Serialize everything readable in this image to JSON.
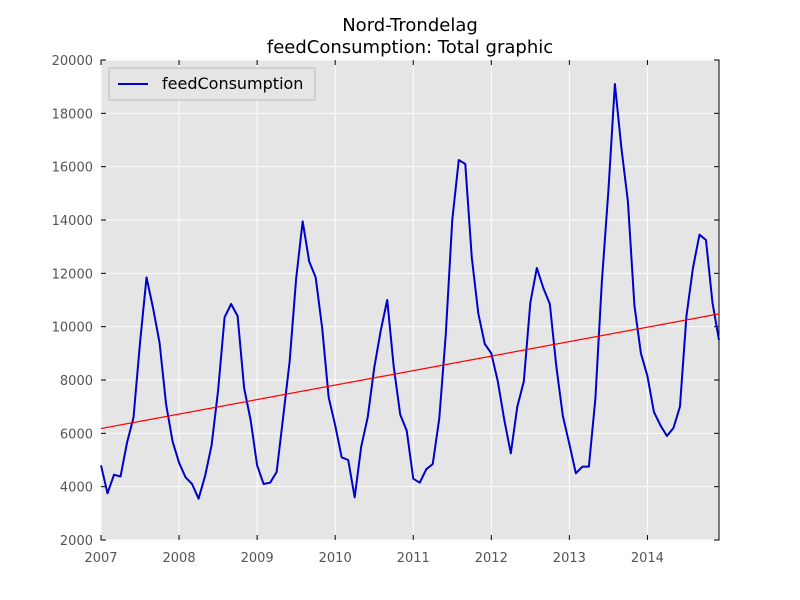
{
  "chart_data": {
    "type": "line",
    "title": "Nord-Trondelag",
    "subtitle": "feedConsumption: Total graphic",
    "xlabel": "",
    "ylabel": "",
    "xlim": [
      2007.0,
      2014.917
    ],
    "ylim": [
      2000,
      20000
    ],
    "x_ticks": [
      "2007",
      "2008",
      "2009",
      "2010",
      "2011",
      "2012",
      "2013",
      "2014"
    ],
    "y_ticks": [
      "2000",
      "4000",
      "6000",
      "8000",
      "10000",
      "12000",
      "14000",
      "16000",
      "18000",
      "20000"
    ],
    "grid": true,
    "legend": {
      "position": "top-left",
      "entries": [
        "feedConsumption"
      ]
    },
    "series": [
      {
        "name": "feedConsumption",
        "color": "#0000cc",
        "x_start": "2007-01",
        "frequency": "monthly",
        "values": [
          4800,
          3750,
          4450,
          4380,
          5650,
          6600,
          9400,
          11850,
          10700,
          9400,
          7100,
          5700,
          4900,
          4350,
          4100,
          3550,
          4400,
          5550,
          7600,
          10350,
          10850,
          10400,
          7700,
          6500,
          4800,
          4100,
          4150,
          4550,
          6600,
          8700,
          11800,
          13950,
          12450,
          11850,
          9950,
          7350,
          6300,
          5100,
          5000,
          3600,
          5500,
          6600,
          8450,
          9850,
          11000,
          8500,
          6700,
          6100,
          4300,
          4150,
          4650,
          4850,
          6550,
          9700,
          14000,
          16250,
          16100,
          12600,
          10500,
          9350,
          9000,
          7950,
          6500,
          5250,
          7000,
          7950,
          10900,
          12200,
          11450,
          10850,
          8500,
          6650,
          5600,
          4500,
          4750,
          4750,
          7300,
          11700,
          15100,
          19100,
          16700,
          14700,
          10800,
          9000,
          8150,
          6800,
          6300,
          5900,
          6200,
          7000,
          10400,
          12200,
          13450,
          13250,
          10900,
          9500
        ]
      },
      {
        "name": "",
        "color": "#ff0000",
        "type": "trend",
        "x": [
          2007.0,
          2014.917
        ],
        "values": [
          6180,
          10480
        ]
      }
    ]
  }
}
